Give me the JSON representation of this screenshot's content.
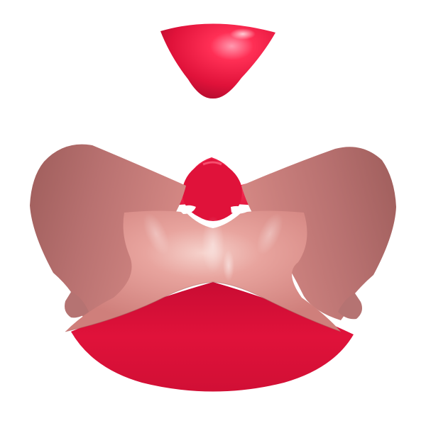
{
  "scene": {
    "subject": "algebraic-surface-render",
    "background_color": "#ffffff",
    "colors": {
      "front_red": "#e0123a",
      "front_red_dark": "#a80a2a",
      "front_red_light": "#ff4a6a",
      "back_pink": "#d98a86",
      "back_pink_dark": "#a2605e",
      "back_pink_light": "#f2c0ba",
      "highlight": "#ffffff"
    }
  }
}
